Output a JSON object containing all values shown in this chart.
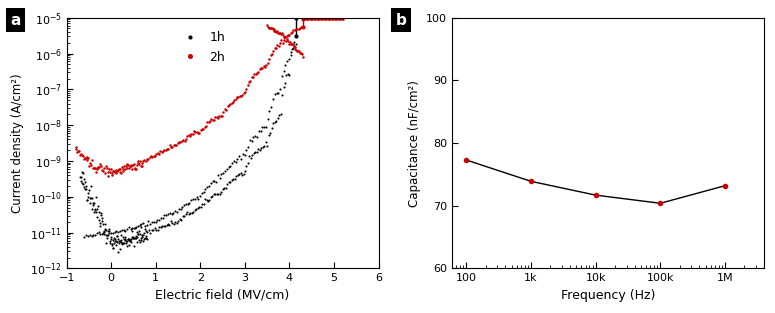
{
  "panel_a": {
    "xlabel": "Electric field (MV/cm)",
    "ylabel": "Current density (A/cm²)",
    "xlim": [
      -1,
      6
    ],
    "ylim": [
      1e-12,
      1e-05
    ],
    "legend_1h": "1h",
    "legend_2h": "2h",
    "color_1h": "#000000",
    "color_2h": "#cc0000",
    "label_a": "a"
  },
  "panel_b": {
    "xlabel": "Frequency (Hz)",
    "ylabel": "Capacitance (nF/cm²)",
    "ylim": [
      60,
      100
    ],
    "color": "#cc0000",
    "line_color": "#000000",
    "freq_x": [
      100,
      1000,
      10000,
      100000,
      1000000
    ],
    "cap_y": [
      77.3,
      73.9,
      71.7,
      70.4,
      73.2
    ],
    "label_b": "b"
  }
}
